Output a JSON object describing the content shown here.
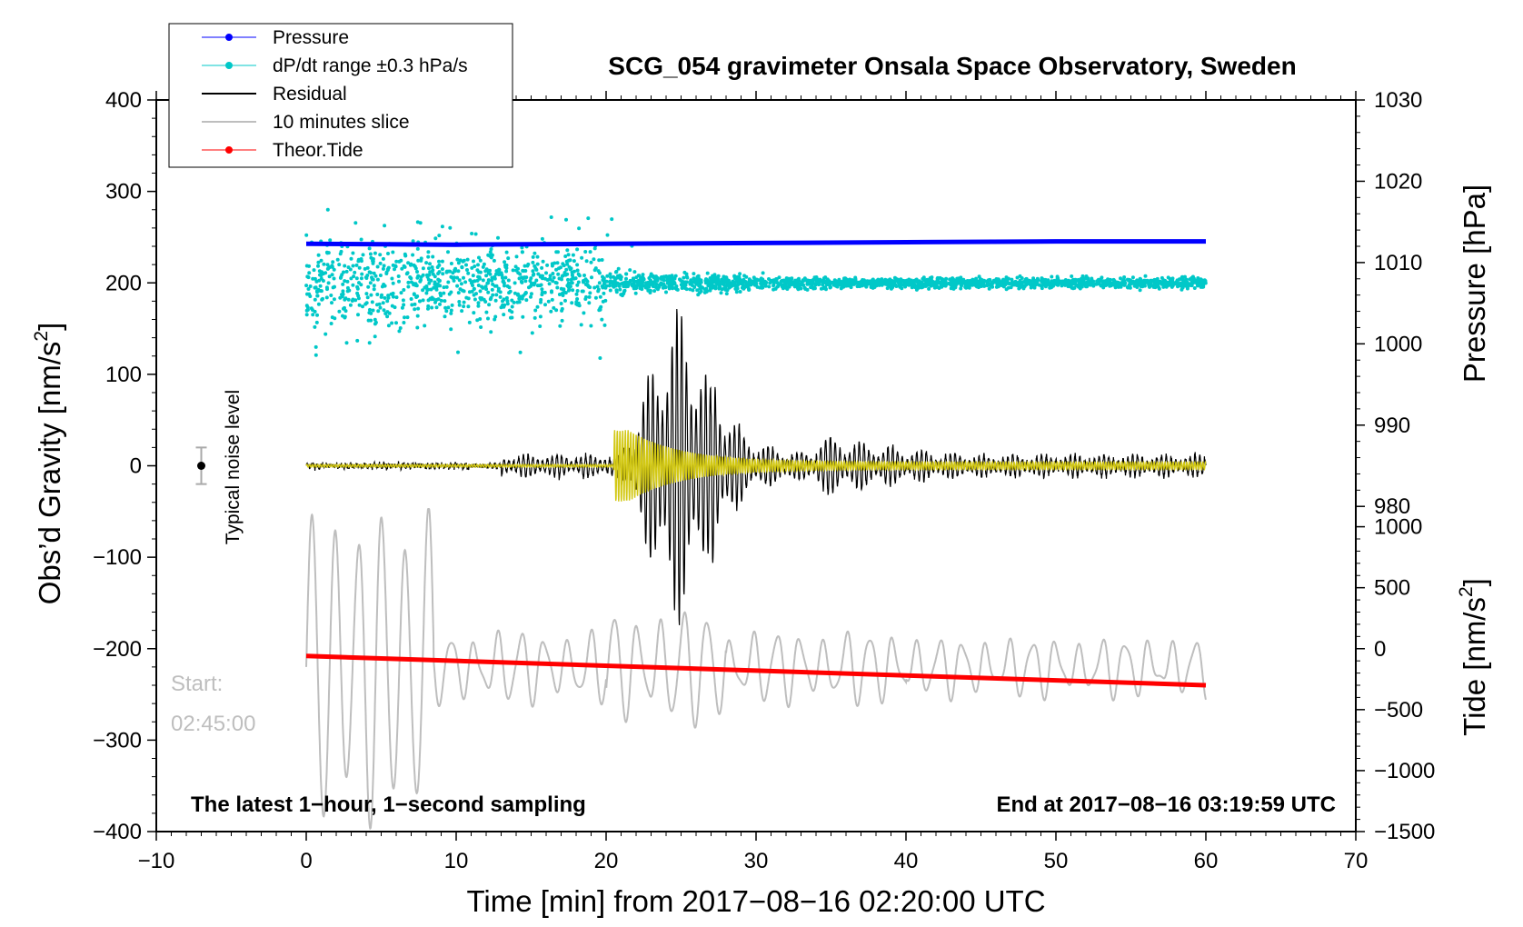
{
  "chart_data": {
    "type": "line",
    "title": "SCG_054 gravimeter Onsala Space Observatory, Sweden",
    "xlabel": "Time [min] from 2017−08−16 02:20:00 UTC",
    "ylabel_left": "Obs’d Gravity [nm/s²]",
    "ylabel_left_main": "Obs’d Gravity [nm/s",
    "ylabel_left_sup": "2",
    "ylabel_left_end": "]",
    "ylabel_right_top": "Pressure [hPa]",
    "ylabel_right_bottom": "Tide [nm/s²]",
    "ylabel_right_bottom_main": "Tide [nm/s",
    "ylabel_right_bottom_sup": "2",
    "ylabel_right_bottom_end": "]",
    "xlim": [
      -10,
      70
    ],
    "ylim_left": [
      -400,
      400
    ],
    "ylim_pressure": [
      940,
      1030
    ],
    "ylim_tide": [
      -1500,
      4500
    ],
    "x_ticks": [
      -10,
      0,
      10,
      20,
      30,
      40,
      50,
      60,
      70
    ],
    "x_tick_labels": [
      "−10",
      "0",
      "10",
      "20",
      "30",
      "40",
      "50",
      "60",
      "70"
    ],
    "y_left_ticks": [
      400,
      300,
      200,
      100,
      0,
      -100,
      -200,
      -300,
      -400
    ],
    "y_left_tick_labels": [
      "400",
      "300",
      "200",
      "100",
      "0",
      "−100",
      "−200",
      "−300",
      "−400"
    ],
    "pressure_ticks": [
      1030,
      1020,
      1010,
      1000,
      990,
      980
    ],
    "pressure_tick_labels": [
      "1030",
      "1020",
      "1010",
      "1000",
      "990",
      "980"
    ],
    "tide_ticks": [
      1000,
      500,
      0,
      -500,
      -1000,
      -1500
    ],
    "tide_tick_labels": [
      "1000",
      "500",
      "0",
      "−500",
      "−1000",
      "−1500"
    ],
    "legend": [
      {
        "label": "Pressure",
        "color": "#0000ff",
        "marker": true
      },
      {
        "label": "dP/dt range ±0.3 hPa/s",
        "color": "#00c8c8",
        "marker": true
      },
      {
        "label": "Residual",
        "color": "#000000",
        "marker": false
      },
      {
        "label": "10 minutes slice",
        "color": "#bebebe",
        "marker": false
      },
      {
        "label": "Theor.Tide",
        "color": "#ff0000",
        "marker": true
      }
    ],
    "series": [
      {
        "name": "Pressure",
        "axis": "pressure",
        "x": [
          0,
          10,
          20,
          30,
          40,
          50,
          60
        ],
        "values": [
          1012.3,
          1012.2,
          1012.3,
          1012.4,
          1012.5,
          1012.6,
          1012.6
        ]
      },
      {
        "name": "dP/dt range ±0.3 hPa/s",
        "axis": "left",
        "center": 200,
        "spread_start": 60,
        "spread_end": 8
      },
      {
        "name": "Residual",
        "axis": "left",
        "peak_x": 25,
        "peak_amplitude": 175,
        "noise_amplitude": 12
      },
      {
        "name": "10 minutes slice",
        "axis": "tide",
        "period_min": 1.55,
        "start_amplitude": 1100,
        "late_amplitude": 280
      },
      {
        "name": "Theor.Tide",
        "axis": "tide",
        "x": [
          0,
          60
        ],
        "values": [
          -60,
          -300
        ]
      },
      {
        "name": "Filtered",
        "axis": "left",
        "color": "#d2c814",
        "start_x": 20.5,
        "peak_amplitude": 35
      }
    ],
    "noise_indicator": {
      "label": "Typical noise level",
      "x": -7,
      "value": 0,
      "error": 20
    },
    "annotations": {
      "start_label": "Start:",
      "start_time": "02:45:00",
      "bottom_left": "The latest 1−hour, 1−second sampling",
      "bottom_right": "End at 2017−08−16 03:19:59 UTC"
    },
    "colors": {
      "pressure": "#0000ff",
      "dpdt": "#00c8c8",
      "residual": "#000000",
      "slice": "#bebebe",
      "tide": "#ff0000",
      "filtered": "#d2c814"
    }
  }
}
